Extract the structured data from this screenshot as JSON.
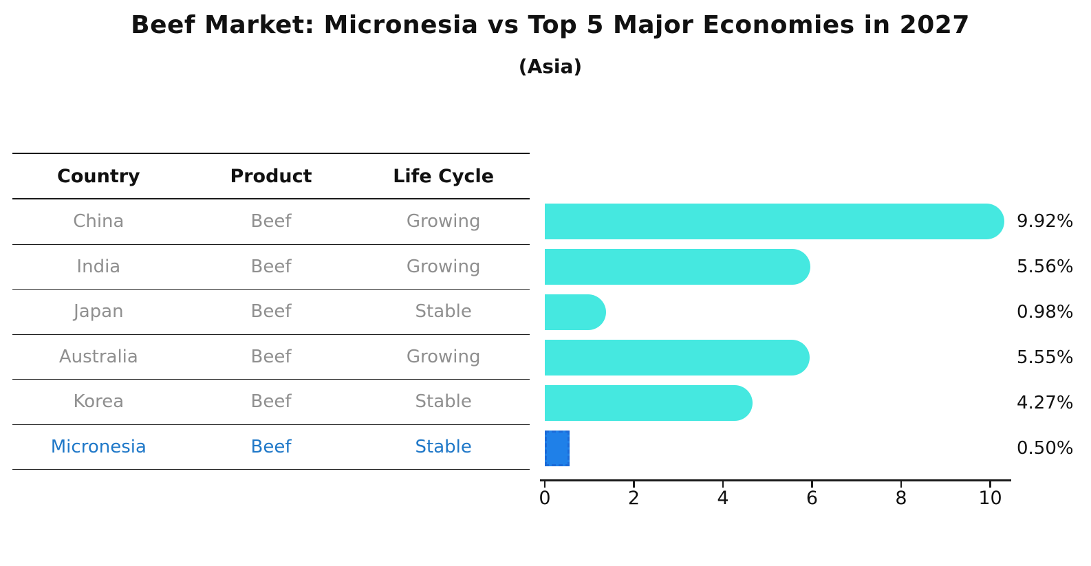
{
  "title": "Beef Market: Micronesia vs Top 5 Major Economies in 2027",
  "subtitle": "(Asia)",
  "table": {
    "headers": [
      "Country",
      "Product",
      "Life Cycle"
    ],
    "rows": [
      {
        "country": "China",
        "product": "Beef",
        "life_cycle": "Growing",
        "highlight": false
      },
      {
        "country": "India",
        "product": "Beef",
        "life_cycle": "Growing",
        "highlight": false
      },
      {
        "country": "Japan",
        "product": "Beef",
        "life_cycle": "Stable",
        "highlight": false
      },
      {
        "country": "Australia",
        "product": "Beef",
        "life_cycle": "Growing",
        "highlight": false
      },
      {
        "country": "Korea",
        "product": "Beef",
        "life_cycle": "Stable",
        "highlight": false
      },
      {
        "country": "Micronesia",
        "product": "Beef",
        "life_cycle": "Stable",
        "highlight": true
      }
    ]
  },
  "chart_data": {
    "type": "bar",
    "orientation": "horizontal",
    "title": "Beef Market: Micronesia vs Top 5 Major Economies in 2027",
    "subtitle": "(Asia)",
    "categories": [
      "China",
      "India",
      "Japan",
      "Australia",
      "Korea",
      "Micronesia"
    ],
    "values": [
      9.92,
      5.56,
      0.98,
      5.55,
      4.27,
      0.5
    ],
    "value_labels": [
      "9.92%",
      "5.56%",
      "0.98%",
      "5.55%",
      "4.27%",
      "0.50%"
    ],
    "highlight_index": 5,
    "x_ticks": [
      0,
      2,
      4,
      6,
      8,
      10
    ],
    "xlim": [
      0,
      10.5
    ],
    "grid": false,
    "legend": "none",
    "bar_color": "#45e8e0",
    "highlight_bar_color": "#1f80e8",
    "highlight_border_color": "#1a6ad8",
    "highlight_text_color": "#1f78c8",
    "row_text_color": "#8f8f8f",
    "axis_color": "#1a1a1a"
  }
}
